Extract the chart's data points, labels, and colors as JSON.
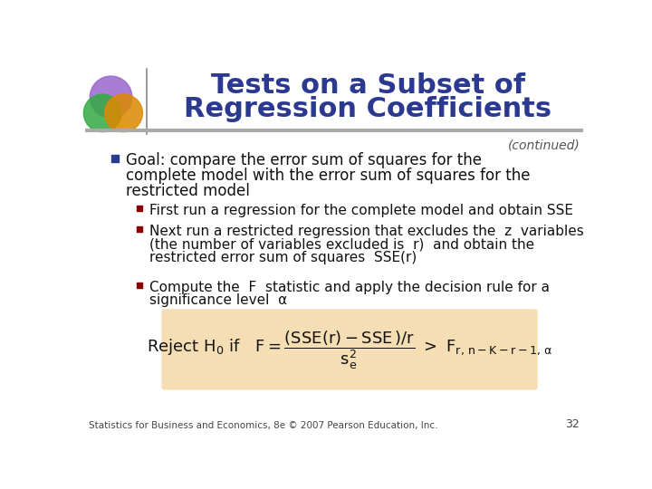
{
  "title_line1": "Tests on a Subset of",
  "title_line2": "Regression Coefficients",
  "continued": "(continued)",
  "title_color": "#2B3990",
  "bg_color": "#FFFFFF",
  "separator_color": "#888888",
  "sub_bullet1": "First run a regression for the complete model and obtain SSE",
  "sub_bullet2_l1": "Next run a restricted regression that excludes the  z  variables",
  "sub_bullet2_l2": "(the number of variables excluded is  r)  and obtain the",
  "sub_bullet2_l3": "restricted error sum of squares  SSE(r)",
  "sub_bullet3_l1": "Compute the  F  statistic and apply the decision rule for a",
  "sub_bullet3_l2": "significance level  α",
  "formula_bg": "#F5DEB3",
  "footer": "Statistics for Business and Economics, 8e © 2007 Pearson Education, Inc.",
  "page_num": "32",
  "text_color": "#111111",
  "sub_bullet_color": "#8B0000",
  "main_bullet_color": "#2B3990",
  "circle1_color": "#9966CC",
  "circle2_color": "#33AA44",
  "circle3_color": "#DD8800"
}
